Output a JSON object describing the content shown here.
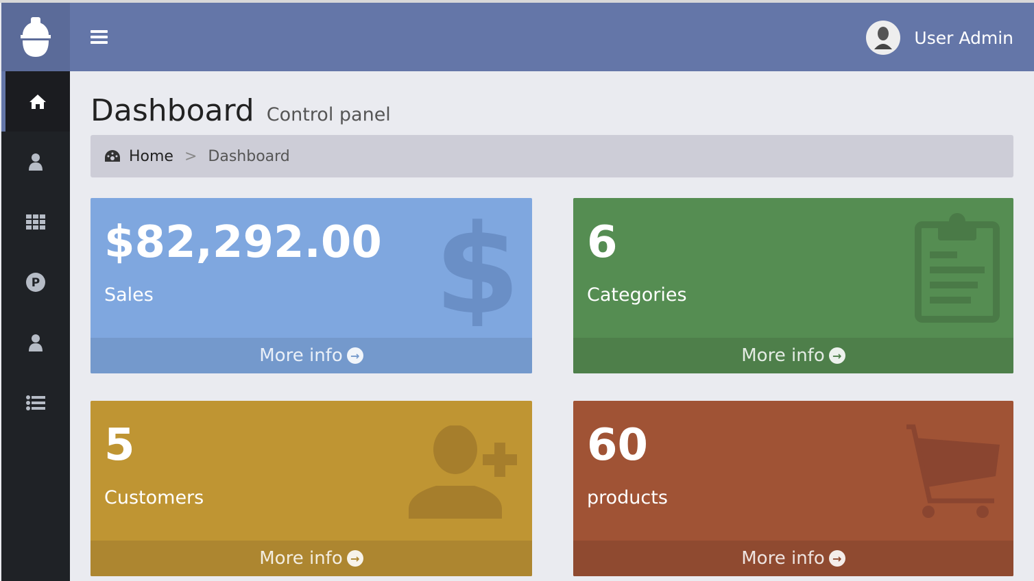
{
  "header": {
    "user_name": "User Admin",
    "color": "#6476a8"
  },
  "sidebar": {
    "items": [
      {
        "icon": "home-icon"
      },
      {
        "icon": "user-icon"
      },
      {
        "icon": "grid-icon"
      },
      {
        "icon": "p-circle-icon"
      },
      {
        "icon": "user-icon"
      },
      {
        "icon": "list-icon"
      }
    ]
  },
  "page": {
    "title": "Dashboard",
    "subtitle": "Control panel"
  },
  "breadcrumb": {
    "home": "Home",
    "separator": ">",
    "current": "Dashboard"
  },
  "cards": [
    {
      "value": "$82,292.00",
      "label": "Sales",
      "more": "More info",
      "color": "#7fa7df",
      "icon": "dollar-icon"
    },
    {
      "value": "6",
      "label": "Categories",
      "more": "More info",
      "color": "#558d52",
      "icon": "clipboard-icon"
    },
    {
      "value": "5",
      "label": "Customers",
      "more": "More info",
      "color": "#bf9533",
      "icon": "user-plus-icon"
    },
    {
      "value": "60",
      "label": "products",
      "more": "More info",
      "color": "#a05335",
      "icon": "cart-icon"
    }
  ]
}
